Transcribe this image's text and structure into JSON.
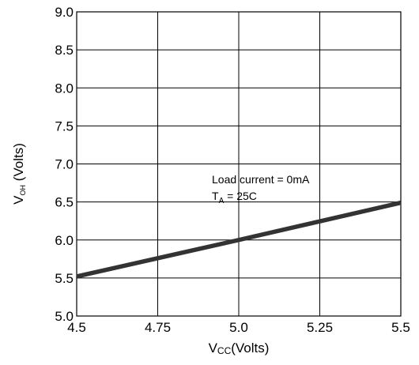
{
  "chart_data": {
    "type": "line",
    "xlabel": {
      "main": "V",
      "sub": "CC",
      "rest": "(Volts)"
    },
    "ylabel": {
      "main": "V",
      "sub": "OH",
      "rest": " (Volts)"
    },
    "xlim": [
      4.5,
      5.5
    ],
    "ylim": [
      5.0,
      9.0
    ],
    "x_ticks": [
      4.5,
      4.75,
      5.0,
      5.25,
      5.5
    ],
    "x_tick_labels": [
      "4.5",
      "4.75",
      "5.0",
      "5.25",
      "5.5"
    ],
    "y_ticks": [
      5.0,
      5.5,
      6.0,
      6.5,
      7.0,
      7.5,
      8.0,
      8.5,
      9.0
    ],
    "y_tick_labels": [
      "5.0",
      "5.5",
      "6.0",
      "6.5",
      "7.0",
      "7.5",
      "8.0",
      "8.5",
      "9.0"
    ],
    "grid": true,
    "series": [
      {
        "x": [
          4.5,
          5.0,
          5.5
        ],
        "y": [
          5.52,
          6.0,
          6.49
        ]
      }
    ],
    "annotations": {
      "line1": "Load current = 0mA",
      "line2_main": "T",
      "line2_sub": "A",
      "line2_rest": " = 25C"
    },
    "colors": {
      "line": "#333333",
      "grid": "#000000"
    }
  }
}
